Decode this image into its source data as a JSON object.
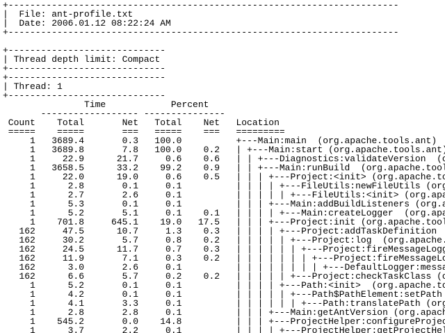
{
  "file_info": {
    "file": "File: ant-profile.txt",
    "date": "Date: 2006.01.12 08:22:24 AM"
  },
  "settings": {
    "thread_depth_limit": "Thread depth limit: Compact",
    "thread": "Thread: 1"
  },
  "table": {
    "group_headers": {
      "time": "Time",
      "percent": "Percent"
    },
    "columns": [
      "Count",
      "Total",
      "Net",
      "Total",
      "Net",
      "Location"
    ],
    "underlines": [
      "=====",
      "=====",
      "===",
      "=====",
      "===",
      "========="
    ],
    "rows": [
      {
        "count": "1",
        "total": "3689.4",
        "net": "0.3",
        "pct_total": "100.0",
        "pct_net": "",
        "location": "+---Main:main  (org.apache.tools.ant)"
      },
      {
        "count": "1",
        "total": "3689.8",
        "net": "7.8",
        "pct_total": "100.0",
        "pct_net": "0.2",
        "location": "| +---Main:start (org.apache.tools.ant)"
      },
      {
        "count": "1",
        "total": "22.9",
        "net": "21.7",
        "pct_total": "0.6",
        "pct_net": "0.6",
        "location": "| | +---Diagnostics:validateVersion  (o"
      },
      {
        "count": "1",
        "total": "3658.5",
        "net": "33.2",
        "pct_total": "99.2",
        "pct_net": "0.9",
        "location": "| | +---Main:runBuild  (org.apache.tool"
      },
      {
        "count": "1",
        "total": "22.0",
        "net": "19.0",
        "pct_total": "0.6",
        "pct_net": "0.5",
        "location": "| | | +---Project:<init> (org.apache.to"
      },
      {
        "count": "1",
        "total": "2.8",
        "net": "0.1",
        "pct_total": "0.1",
        "pct_net": "",
        "location": "| | | | +---FileUtils:newFileUtils (org"
      },
      {
        "count": "1",
        "total": "2.7",
        "net": "2.6",
        "pct_total": "0.1",
        "pct_net": "",
        "location": "| | | | | +---FileUtils:<init> (org.apa"
      },
      {
        "count": "1",
        "total": "5.3",
        "net": "0.1",
        "pct_total": "0.1",
        "pct_net": "",
        "location": "| | | +---Main:addBuildListeners (org.a"
      },
      {
        "count": "1",
        "total": "5.2",
        "net": "5.1",
        "pct_total": "0.1",
        "pct_net": "0.1",
        "location": "| | | | +---Main:createLogger  (org.apa"
      },
      {
        "count": "1",
        "total": "701.8",
        "net": "645.1",
        "pct_total": "19.0",
        "pct_net": "17.5",
        "location": "| | | +---Project:init (org.apache.tool"
      },
      {
        "count": "162",
        "total": "47.5",
        "net": "10.7",
        "pct_total": "1.3",
        "pct_net": "0.3",
        "location": "| | | | +---Project:addTaskDefinition"
      },
      {
        "count": "162",
        "total": "30.2",
        "net": "5.7",
        "pct_total": "0.8",
        "pct_net": "0.2",
        "location": "| | | | | +---Project:log  (org.apache."
      },
      {
        "count": "162",
        "total": "24.5",
        "net": "11.7",
        "pct_total": "0.7",
        "pct_net": "0.3",
        "location": "| | | | | | +---Project:fireMessageLogg"
      },
      {
        "count": "162",
        "total": "11.9",
        "net": "7.1",
        "pct_total": "0.3",
        "pct_net": "0.2",
        "location": "| | | | | | | +---Project:fireMessageLo"
      },
      {
        "count": "162",
        "total": "3.0",
        "net": "2.6",
        "pct_total": "0.1",
        "pct_net": "",
        "location": "| | | | | | | | +---DefaultLogger:messa"
      },
      {
        "count": "162",
        "total": "6.6",
        "net": "5.7",
        "pct_total": "0.2",
        "pct_net": "0.2",
        "location": "| | | | | +---Project:checkTaskClass (o"
      },
      {
        "count": "1",
        "total": "5.2",
        "net": "0.1",
        "pct_total": "0.1",
        "pct_net": "",
        "location": "| | | | +---Path:<init>  (org.apache.to"
      },
      {
        "count": "1",
        "total": "4.2",
        "net": "0.1",
        "pct_total": "0.1",
        "pct_net": "",
        "location": "| | | | | +---Path$PathElement:setPath"
      },
      {
        "count": "1",
        "total": "4.1",
        "net": "3.3",
        "pct_total": "0.1",
        "pct_net": "",
        "location": "| | | | | | +---Path:translatePath (org"
      },
      {
        "count": "1",
        "total": "2.8",
        "net": "2.8",
        "pct_total": "0.1",
        "pct_net": "",
        "location": "| | | +---Main:getAntVersion (org.apach"
      },
      {
        "count": "1",
        "total": "545.2",
        "net": "0.0",
        "pct_total": "14.8",
        "pct_net": "",
        "location": "| | | +---ProjectHelper:configureProjec"
      },
      {
        "count": "1",
        "total": "3.7",
        "net": "2.2",
        "pct_total": "0.1",
        "pct_net": "",
        "location": "| | | | +---ProjectHelper:getProjectHel"
      }
    ]
  },
  "ascii": {
    "outer_box_dashes": 72,
    "inner_box_dashes": 29,
    "time_dash_group": 18,
    "percent_dash_group": 15
  },
  "colors": {
    "text": "#000000",
    "background": "#ffffff"
  }
}
